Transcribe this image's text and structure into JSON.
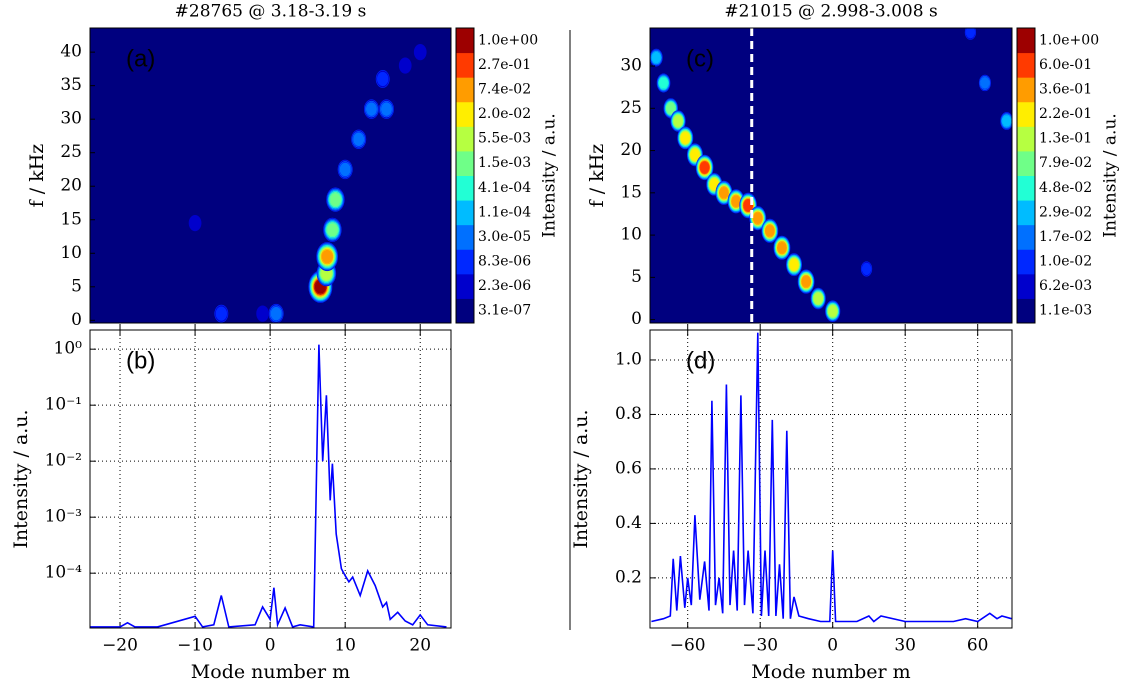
{
  "chart_data": [
    {
      "type": "contour",
      "title": "#28765 @ 3.18-3.19 s",
      "label": "(a)",
      "ylabel": "f / kHz",
      "xlim": [
        -24,
        24.1
      ],
      "ylim": [
        -0.4,
        43.6
      ],
      "yticks": [
        0,
        5,
        10,
        15,
        20,
        25,
        30,
        35,
        40
      ],
      "x": [
        6.7,
        7.5,
        7.6,
        8.3,
        8.7,
        10,
        11.8,
        13.5,
        15.5,
        15,
        18,
        20,
        19,
        -6.5,
        0.8,
        -1,
        -10,
        -15,
        0
      ],
      "y": [
        5,
        7,
        9.5,
        13.5,
        18,
        22.5,
        27,
        31.5,
        31.5,
        36,
        38,
        40,
        41,
        1,
        1,
        1,
        14.5,
        7,
        19
      ],
      "values": [
        1.0,
        0.01,
        0.1,
        0.005,
        0.002,
        0.0001,
        0.0001,
        5e-05,
        3e-05,
        1e-05,
        5e-06,
        3e-06,
        2e-06,
        2e-05,
        3e-05,
        3e-06,
        3e-06,
        2e-06,
        1e-06
      ],
      "colorbar": {
        "label": "Intensity / a.u.",
        "ticks": [
          {
            "value": 3.1e-07,
            "label": "3.1e-07"
          },
          {
            "value": 2.3e-06,
            "label": "2.3e-06"
          },
          {
            "value": 8.3e-06,
            "label": "8.3e-06"
          },
          {
            "value": 3e-05,
            "label": "3.0e-05"
          },
          {
            "value": 0.00011,
            "label": "1.1e-04"
          },
          {
            "value": 0.00041,
            "label": "4.1e-04"
          },
          {
            "value": 0.0015,
            "label": "1.5e-03"
          },
          {
            "value": 0.0055,
            "label": "5.5e-03"
          },
          {
            "value": 0.02,
            "label": "2.0e-02"
          },
          {
            "value": 0.074,
            "label": "7.4e-02"
          },
          {
            "value": 0.27,
            "label": "2.7e-01"
          },
          {
            "value": 1.0,
            "label": "1.0e+00"
          }
        ],
        "colors": [
          "#00007f",
          "#0000cc",
          "#0028ff",
          "#0070ff",
          "#00bcff",
          "#22ffd5",
          "#6fff88",
          "#b6ff41",
          "#ffee00",
          "#ff9c00",
          "#ff3a00",
          "#9d0000"
        ]
      }
    },
    {
      "type": "line",
      "label": "(b)",
      "xlabel": "Mode number m",
      "ylabel": "Intensity / a.u.",
      "log_y": true,
      "grid": true,
      "color": "#0000ff",
      "xlim": [
        -24,
        24.1
      ],
      "ylim": [
        1.05e-05,
        2.2
      ],
      "xticks": [
        {
          "value": -20,
          "label": "−20"
        },
        {
          "value": -10,
          "label": "−10"
        },
        0,
        10,
        20
      ],
      "yticks": [
        {
          "value": 0.0001,
          "label": "10⁻⁴"
        },
        {
          "value": 0.001,
          "label": "10⁻³"
        },
        {
          "value": 0.01,
          "label": "10⁻²"
        },
        {
          "value": 0.1,
          "label": "10⁻¹"
        },
        {
          "value": 1,
          "label": "10⁰"
        }
      ],
      "x": [
        -24,
        -20,
        -19,
        -18,
        -15,
        -14,
        -10,
        -9,
        -7.5,
        -6.5,
        -5.5,
        -2,
        -1,
        0,
        0.5,
        1,
        2,
        3,
        4,
        5.8,
        6.5,
        7,
        7.5,
        8,
        8.3,
        8.8,
        9.5,
        10,
        10.5,
        11,
        12,
        13,
        14,
        15,
        15.5,
        16,
        17,
        18,
        19,
        20,
        21,
        23.5
      ],
      "values": [
        1.1e-05,
        1.1e-05,
        1.3e-05,
        1.1e-05,
        1.1e-05,
        1.2e-05,
        1.7e-05,
        1.1e-05,
        1.2e-05,
        4e-05,
        1.1e-05,
        1.2e-05,
        2.5e-05,
        1.5e-05,
        5.5e-05,
        1.2e-05,
        2.4e-05,
        1.1e-05,
        1.2e-05,
        1.1e-05,
        1.2,
        0.01,
        0.15,
        0.002,
        0.009,
        0.0005,
        0.00012,
        9e-05,
        7e-05,
        8.5e-05,
        4e-05,
        0.00011,
        6e-05,
        2.5e-05,
        3e-05,
        1.5e-05,
        2e-05,
        1.4e-05,
        1.2e-05,
        1.8e-05,
        1.2e-05,
        1.1e-05
      ]
    },
    {
      "type": "contour",
      "title": "#21015 @ 2.998-3.008 s",
      "label": "(c)",
      "ylabel": "f / kHz",
      "vline": -33.5,
      "xlim": [
        -75.6,
        74.2
      ],
      "ylim": [
        -0.4,
        34.5
      ],
      "yticks": [
        0,
        5,
        10,
        15,
        20,
        25,
        30
      ],
      "x": [
        -73,
        -70,
        -67,
        -64,
        -61,
        -57,
        -53,
        -49,
        -45,
        -40,
        -35,
        -31,
        -26,
        -21,
        -16,
        -11,
        -6,
        0,
        14,
        57,
        63,
        72
      ],
      "y": [
        31,
        28,
        25,
        23.5,
        21.5,
        19.5,
        18,
        16,
        15,
        14,
        13.5,
        12,
        10.5,
        8.5,
        6.5,
        4.5,
        2.5,
        1,
        6,
        34,
        28,
        23.5
      ],
      "values": [
        0.03,
        0.05,
        0.08,
        0.2,
        0.3,
        0.25,
        0.7,
        0.3,
        0.4,
        0.5,
        0.7,
        0.5,
        0.5,
        0.4,
        0.35,
        0.4,
        0.2,
        0.15,
        0.01,
        0.01,
        0.02,
        0.03
      ],
      "colorbar": {
        "label": "Intensity / a.u.",
        "ticks": [
          {
            "value": 0.0011,
            "label": "1.1e-03"
          },
          {
            "value": 0.0062,
            "label": "6.2e-03"
          },
          {
            "value": 0.01,
            "label": "1.0e-02"
          },
          {
            "value": 0.017,
            "label": "1.7e-02"
          },
          {
            "value": 0.029,
            "label": "2.9e-02"
          },
          {
            "value": 0.048,
            "label": "4.8e-02"
          },
          {
            "value": 0.079,
            "label": "7.9e-02"
          },
          {
            "value": 0.13,
            "label": "1.3e-01"
          },
          {
            "value": 0.22,
            "label": "2.2e-01"
          },
          {
            "value": 0.36,
            "label": "3.6e-01"
          },
          {
            "value": 0.6,
            "label": "6.0e-01"
          },
          {
            "value": 1.0,
            "label": "1.0e+00"
          }
        ],
        "colors": [
          "#00007f",
          "#0000cc",
          "#0028ff",
          "#0070ff",
          "#00bcff",
          "#22ffd5",
          "#6fff88",
          "#b6ff41",
          "#ffee00",
          "#ff9c00",
          "#ff3a00",
          "#9d0000"
        ]
      }
    },
    {
      "type": "line",
      "label": "(d)",
      "xlabel": "Mode number m",
      "ylabel": "Intensity / a.u.",
      "log_y": false,
      "grid": true,
      "color": "#0000ff",
      "xlim": [
        -75.6,
        74.2
      ],
      "ylim": [
        0.016,
        1.11
      ],
      "xticks": [
        {
          "value": -60,
          "label": "−60"
        },
        {
          "value": -30,
          "label": "−30"
        },
        0,
        30,
        60
      ],
      "yticks": [
        0.2,
        0.4,
        0.6,
        0.8,
        {
          "value": 1.0,
          "label": "1.0"
        }
      ],
      "x": [
        -75,
        -70,
        -67.2,
        -66,
        -64.5,
        -63,
        -61.2,
        -60,
        -58.5,
        -57,
        -55,
        -53,
        -51.2,
        -50,
        -48.5,
        -47,
        -45.5,
        -44,
        -42.5,
        -41,
        -39.5,
        -38,
        -36.5,
        -35,
        -33,
        -31,
        -29.5,
        -28,
        -26.5,
        -25,
        -23.5,
        -22,
        -20.5,
        -19,
        -17.5,
        -16,
        -14,
        -10,
        -5,
        -1.2,
        0,
        1.2,
        5,
        10,
        15,
        17,
        20,
        30,
        40,
        50,
        55,
        60,
        65,
        68,
        70,
        74
      ],
      "values": [
        0.04,
        0.05,
        0.06,
        0.27,
        0.08,
        0.28,
        0.09,
        0.2,
        0.1,
        0.43,
        0.12,
        0.26,
        0.08,
        0.85,
        0.1,
        0.2,
        0.07,
        0.91,
        0.1,
        0.3,
        0.08,
        0.87,
        0.1,
        0.3,
        0.07,
        1.1,
        0.06,
        0.3,
        0.06,
        0.78,
        0.06,
        0.25,
        0.05,
        0.74,
        0.05,
        0.13,
        0.06,
        0.05,
        0.04,
        0.04,
        0.3,
        0.04,
        0.04,
        0.04,
        0.06,
        0.04,
        0.06,
        0.04,
        0.04,
        0.04,
        0.05,
        0.04,
        0.07,
        0.05,
        0.06,
        0.05
      ]
    }
  ]
}
